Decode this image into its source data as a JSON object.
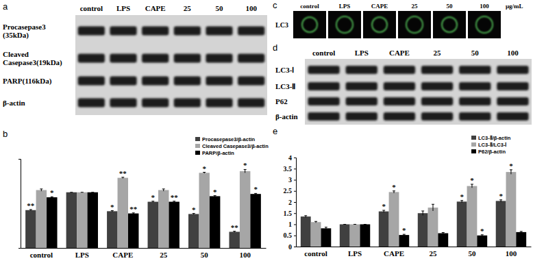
{
  "panel_labels": [
    "a",
    "b",
    "c",
    "d",
    "e"
  ],
  "blots": [
    {
      "columns": [
        "control",
        "LPS",
        "CAPE",
        "25",
        "50",
        "100"
      ],
      "rows": [
        [
          "Procasepase3",
          "(35kDa)"
        ],
        [
          "Cleaved",
          "Casepase3(19kDa)"
        ],
        [
          "PARP(116kDa)"
        ],
        [
          "β-actin"
        ]
      ]
    },
    {
      "columns": [
        "control",
        "LPS",
        "CAPE",
        "25",
        "50",
        "100"
      ],
      "rows": [
        [
          "LC3-Ⅰ"
        ],
        [
          "LC3-Ⅱ"
        ],
        [
          "P62"
        ],
        [
          "β-actin"
        ]
      ]
    }
  ],
  "images": {
    "row_label": "LC3",
    "columns": [
      "control",
      "LPS",
      "CAPE",
      "25",
      "50",
      "100"
    ],
    "unit": "μg/mL"
  },
  "chart_data": [
    {
      "type": "bar",
      "categories": [
        "control",
        "LPS",
        "CAPE",
        "25",
        "50",
        "100"
      ],
      "ylim": [
        0,
        1.6
      ],
      "tick_labels": "x",
      "legend": "top-right",
      "series": [
        {
          "name": "Procasepase3/β-actin",
          "color": "#404040",
          "values": [
            0.68,
            1,
            0.66,
            0.83,
            0.61,
            0.29
          ],
          "errors": [
            0.01,
            0,
            0.01,
            0.01,
            0.01,
            0.01
          ],
          "significance": [
            "**",
            null,
            "*",
            "*",
            "*",
            "**"
          ]
        },
        {
          "name": "Cleaved Casepase3/β-actin",
          "color": "#a6a6a6",
          "values": [
            1.04,
            1,
            1.26,
            1.04,
            1.35,
            1.38
          ],
          "errors": [
            0.02,
            0,
            0.01,
            0.02,
            0.01,
            0.03
          ],
          "significance": [
            null,
            null,
            "**",
            null,
            "*",
            "*"
          ]
        },
        {
          "name": "PARP/β-actin",
          "color": "#000000",
          "values": [
            0.91,
            1,
            0.62,
            0.83,
            0.93,
            0.97
          ],
          "errors": [
            0.01,
            0,
            0.01,
            0.01,
            0.01,
            0.01
          ],
          "significance": [
            "*",
            null,
            "**",
            "**",
            "*",
            "*"
          ]
        }
      ]
    },
    {
      "type": "bar",
      "categories": [
        "control",
        "LPS",
        "CAPE",
        "25",
        "50",
        "100"
      ],
      "ylim": [
        0,
        4
      ],
      "yticks": [
        0,
        0.5,
        1,
        1.5,
        2,
        2.5,
        3,
        3.5,
        4
      ],
      "legend": "top-right",
      "series": [
        {
          "name": "LC3-Ⅱ/β-actin",
          "color": "#404040",
          "values": [
            1.35,
            1,
            1.58,
            1.5,
            2.02,
            2.05
          ],
          "errors": [
            0.04,
            0,
            0.05,
            0.1,
            0.05,
            0.05
          ],
          "significance": [
            null,
            null,
            "*",
            null,
            "*",
            "*"
          ]
        },
        {
          "name": "LC3-Ⅱ/LC3-Ⅰ",
          "color": "#a6a6a6",
          "values": [
            1.1,
            1,
            2.45,
            1.75,
            2.72,
            3.35
          ],
          "errors": [
            0.03,
            0,
            0.05,
            0.15,
            0.08,
            0.1
          ],
          "significance": [
            null,
            null,
            "*",
            null,
            "*",
            "*"
          ]
        },
        {
          "name": "P62/β-actin",
          "color": "#000000",
          "values": [
            0.82,
            1,
            0.52,
            0.6,
            0.5,
            0.65
          ],
          "errors": [
            0.05,
            0,
            0.03,
            0.03,
            0.03,
            0.03
          ],
          "significance": [
            null,
            null,
            "*",
            null,
            "*",
            null
          ]
        }
      ]
    }
  ]
}
